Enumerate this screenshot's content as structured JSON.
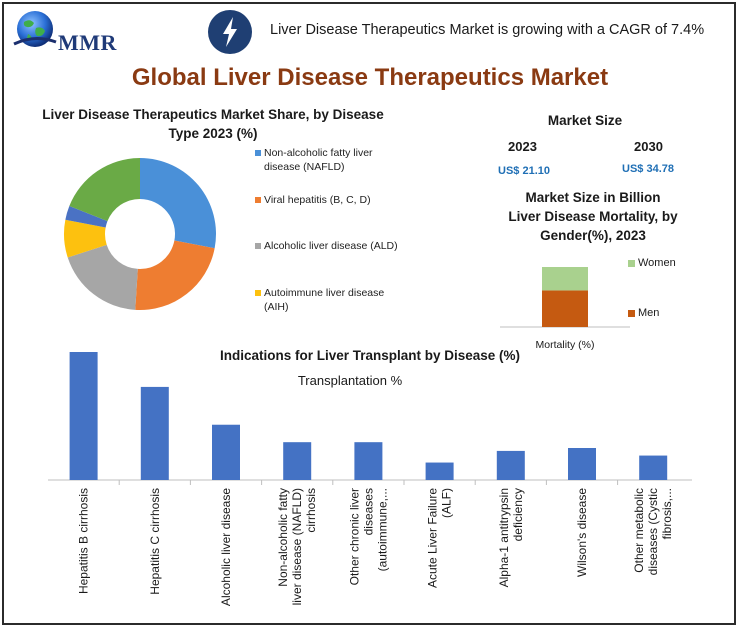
{
  "header": {
    "logo_text": "MMR",
    "cagr_text": "Liver Disease Therapeutics Market is growing with a CAGR of 7.4%",
    "title": "Global Liver Disease Therapeutics Market",
    "icons": {
      "logo": "globe-icon",
      "bolt": "lightning-bolt-icon"
    }
  },
  "market_size": {
    "title": "Market Size",
    "years": [
      {
        "year": "2023",
        "value": "US$ 21.10"
      },
      {
        "year": "2030",
        "value": "US$ 34.78"
      }
    ],
    "unit_note": "Market Size in Billion"
  },
  "colors": {
    "blue": "#4a90d8",
    "orange": "#ee7d31",
    "gray": "#a6a6a6",
    "yellow": "#fdc10f",
    "green": "#6aaa46",
    "women": "#a9d18e",
    "men": "#c55a11",
    "bar": "#4472c4",
    "title": "#8a3a12"
  },
  "chart_data": [
    {
      "type": "pie",
      "title": "Liver Disease Therapeutics Market Share, by Disease Type 2023 (%)",
      "donut": true,
      "legend_position": "right",
      "categories": [
        "Non-alcoholic fatty liver disease (NAFLD)",
        "Viral hepatitis (B, C, D)",
        "Alcoholic liver disease (ALD)",
        "Autoimmune liver disease (AIH)",
        "",
        ""
      ],
      "values": [
        28,
        23,
        19,
        8,
        3,
        19
      ],
      "colors": [
        "#4a90d8",
        "#ee7d31",
        "#a6a6a6",
        "#fdc10f",
        "#4a72c4",
        "#6aaa46"
      ]
    },
    {
      "type": "bar",
      "stacked": true,
      "title": "Liver Disease Mortality, by Gender(%), 2023",
      "categories": [
        "Mortality (%)"
      ],
      "series": [
        {
          "name": "Men",
          "values": [
            61
          ],
          "color": "#c55a11"
        },
        {
          "name": "Women",
          "values": [
            39
          ],
          "color": "#a9d18e"
        }
      ],
      "ylim": [
        0,
        100
      ],
      "legend_position": "right"
    },
    {
      "type": "bar",
      "title": "Indications for Liver Transplant by Disease (%)",
      "subtitle": "Transplantation %",
      "categories": [
        "Hepatitis B cirrhosis",
        "Hepatitis C cirrhosis",
        "Alcoholic liver disease",
        "Non-alcoholic fatty liver disease (NAFLD) cirrhosis",
        "Other chronic liver diseases (autoimmune,...",
        "Acute Liver Failure (ALF)",
        "Alpha-1 antitrypsin deficiency",
        "Wilson's disease",
        "Other metabolic diseases (Cystic fibrosis,..."
      ],
      "label_lines": [
        [
          "Hepatitis B cirrhosis"
        ],
        [
          "Hepatitis C cirrhosis"
        ],
        [
          "Alcoholic liver disease"
        ],
        [
          "Non-alcoholic fatty",
          "liver disease (NAFLD)",
          "cirrhosis"
        ],
        [
          "Other chronic liver",
          "diseases",
          "(autoimmune,..."
        ],
        [
          "Acute Liver Failure",
          "(ALF)"
        ],
        [
          "Alpha-1 antitrypsin",
          "deficiency"
        ],
        [
          "Wilson's disease"
        ],
        [
          "Other metabolic",
          "diseases (Cystic",
          "fibrosis,..."
        ]
      ],
      "values": [
        22,
        16,
        9.5,
        6.5,
        6.5,
        3,
        5,
        5.5,
        4.2
      ],
      "ylim": [
        0,
        22
      ],
      "grid": false
    }
  ]
}
